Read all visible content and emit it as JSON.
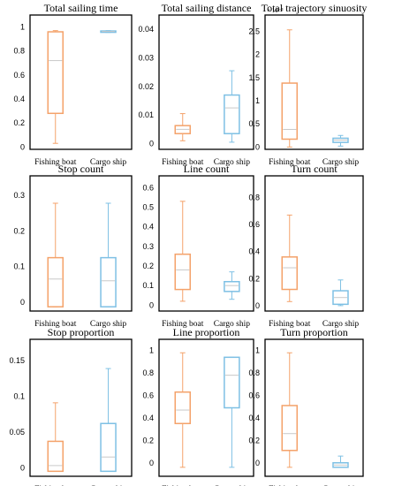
{
  "colors": {
    "fishing": "#f4a26a",
    "cargo": "#7ec0e4",
    "median": "#c8c8c8",
    "frame": "#000000"
  },
  "chart_data": [
    {
      "type": "box",
      "title": "Total sailing time",
      "categories": [
        "Fishing boat",
        "Cargo ship"
      ],
      "ylim": [
        -0.02,
        1.1
      ],
      "yticks": [
        0,
        0.2,
        0.4,
        0.6,
        0.8,
        1
      ],
      "ytick_labels": [
        "0",
        "0.2",
        "0.4",
        "0.6",
        "0.8",
        "1"
      ],
      "scale_label": "",
      "boxes": [
        {
          "name": "Fishing boat",
          "min": 0.03,
          "q1": 0.28,
          "median": 0.72,
          "q3": 0.96,
          "max": 0.97
        },
        {
          "name": "Cargo ship",
          "min": 0.955,
          "q1": 0.958,
          "median": 0.963,
          "q3": 0.967,
          "max": 0.97
        }
      ]
    },
    {
      "type": "box",
      "title": "Total sailing distance",
      "categories": [
        "Fishing boat",
        "Cargo ship"
      ],
      "ylim": [
        -0.002,
        0.045
      ],
      "yticks": [
        0,
        0.01,
        0.02,
        0.03,
        0.04
      ],
      "ytick_labels": [
        "0",
        "0.01",
        "0.02",
        "0.03",
        "0.04"
      ],
      "scale_label": "",
      "boxes": [
        {
          "name": "Fishing boat",
          "min": 0.001,
          "q1": 0.0035,
          "median": 0.005,
          "q3": 0.0063,
          "max": 0.0105
        },
        {
          "name": "Cargo ship",
          "min": 0.0005,
          "q1": 0.0035,
          "median": 0.0125,
          "q3": 0.017,
          "max": 0.0255
        }
      ]
    },
    {
      "type": "box",
      "title": "Total trajectory sinuosity",
      "categories": [
        "Fishing boat",
        "Cargo ship"
      ],
      "ylim": [
        -0.05,
        2.85
      ],
      "yticks": [
        0,
        0.5,
        1,
        1.5,
        2,
        2.5
      ],
      "ytick_labels": [
        "0",
        "0.5",
        "1",
        "1.5",
        "2",
        "2.5"
      ],
      "scale_label": "× 10⁻³",
      "boxes": [
        {
          "name": "Fishing boat",
          "min": 0.0,
          "q1": 0.17,
          "median": 0.38,
          "q3": 1.38,
          "max": 2.53
        },
        {
          "name": "Cargo ship",
          "min": 0.02,
          "q1": 0.1,
          "median": 0.15,
          "q3": 0.19,
          "max": 0.25
        }
      ]
    },
    {
      "type": "box",
      "title": "Stop count",
      "categories": [
        "Fishing boat",
        "Cargo ship"
      ],
      "ylim": [
        -0.025,
        0.355
      ],
      "yticks": [
        0,
        0.1,
        0.2,
        0.3
      ],
      "ytick_labels": [
        "0",
        "0.1",
        "0.2",
        "0.3"
      ],
      "scale_label": "",
      "boxes": [
        {
          "name": "Fishing boat",
          "min": -0.013,
          "q1": -0.013,
          "median": 0.065,
          "q3": 0.125,
          "max": 0.278
        },
        {
          "name": "Cargo ship",
          "min": -0.013,
          "q1": -0.013,
          "median": 0.06,
          "q3": 0.125,
          "max": 0.278
        }
      ]
    },
    {
      "type": "box",
      "title": "Line count",
      "categories": [
        "Fishing boat",
        "Cargo ship"
      ],
      "ylim": [
        -0.03,
        0.66
      ],
      "yticks": [
        0,
        0.1,
        0.2,
        0.3,
        0.4,
        0.5,
        0.6
      ],
      "ytick_labels": [
        "0",
        "0.1",
        "0.2",
        "0.3",
        "0.4",
        "0.5",
        "0.6"
      ],
      "scale_label": "",
      "boxes": [
        {
          "name": "Fishing boat",
          "min": 0.02,
          "q1": 0.08,
          "median": 0.18,
          "q3": 0.26,
          "max": 0.53
        },
        {
          "name": "Cargo ship",
          "min": 0.03,
          "q1": 0.07,
          "median": 0.1,
          "q3": 0.12,
          "max": 0.17
        }
      ]
    },
    {
      "type": "box",
      "title": "Turn count",
      "categories": [
        "Fishing boat",
        "Cargo ship"
      ],
      "ylim": [
        -0.04,
        0.96
      ],
      "yticks": [
        0,
        0.2,
        0.4,
        0.6,
        0.8
      ],
      "ytick_labels": [
        "0",
        "0.2",
        "0.4",
        "0.6",
        "0.8"
      ],
      "scale_label": "",
      "boxes": [
        {
          "name": "Fishing boat",
          "min": 0.03,
          "q1": 0.12,
          "median": 0.28,
          "q3": 0.36,
          "max": 0.67
        },
        {
          "name": "Cargo ship",
          "min": 0.0,
          "q1": 0.01,
          "median": 0.06,
          "q3": 0.11,
          "max": 0.19
        }
      ]
    },
    {
      "type": "box",
      "title": "Stop proportion",
      "categories": [
        "Fishing boat",
        "Cargo ship"
      ],
      "ylim": [
        -0.012,
        0.18
      ],
      "yticks": [
        0,
        0.05,
        0.1,
        0.15
      ],
      "ytick_labels": [
        "0",
        "0.05",
        "0.1",
        "0.15"
      ],
      "scale_label": "",
      "boxes": [
        {
          "name": "Fishing boat",
          "min": -0.005,
          "q1": -0.005,
          "median": 0.003,
          "q3": 0.037,
          "max": 0.091
        },
        {
          "name": "Cargo ship",
          "min": -0.005,
          "q1": -0.005,
          "median": 0.015,
          "q3": 0.062,
          "max": 0.139
        }
      ]
    },
    {
      "type": "box",
      "title": "Line proportion",
      "categories": [
        "Fishing boat",
        "Cargo ship"
      ],
      "ylim": [
        -0.12,
        1.1
      ],
      "yticks": [
        0,
        0.2,
        0.4,
        0.6,
        0.8,
        1
      ],
      "ytick_labels": [
        "0",
        "0.2",
        "0.4",
        "0.6",
        "0.8",
        "1"
      ],
      "scale_label": "",
      "boxes": [
        {
          "name": "Fishing boat",
          "min": -0.04,
          "q1": 0.35,
          "median": 0.47,
          "q3": 0.63,
          "max": 0.98
        },
        {
          "name": "Cargo ship",
          "min": -0.04,
          "q1": 0.49,
          "median": 0.78,
          "q3": 0.94,
          "max": 0.94
        }
      ]
    },
    {
      "type": "box",
      "title": "Turn proportion",
      "categories": [
        "Fishing boat",
        "Cargo ship"
      ],
      "ylim": [
        -0.12,
        1.1
      ],
      "yticks": [
        0,
        0.2,
        0.4,
        0.6,
        0.8,
        1
      ],
      "ytick_labels": [
        "0",
        "0.2",
        "0.4",
        "0.6",
        "0.8",
        "1"
      ],
      "scale_label": "",
      "boxes": [
        {
          "name": "Fishing boat",
          "min": -0.04,
          "q1": 0.11,
          "median": 0.26,
          "q3": 0.51,
          "max": 0.98
        },
        {
          "name": "Cargo ship",
          "min": -0.04,
          "q1": -0.04,
          "median": -0.02,
          "q3": 0.0,
          "max": 0.06
        }
      ]
    }
  ]
}
